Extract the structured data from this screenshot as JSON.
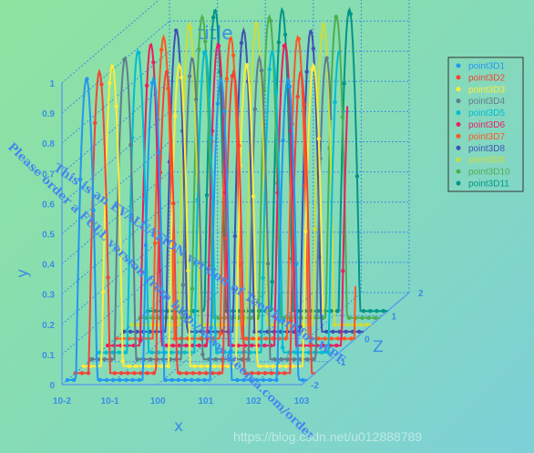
{
  "chart_data": {
    "type": "line",
    "title": "title",
    "xlabel": "x",
    "ylabel": "y",
    "zlabel": "Z",
    "x_scale": "log",
    "x_ticks": [
      "10-2",
      "10-1",
      "100",
      "101",
      "102",
      "103"
    ],
    "y_ticks": [
      "0",
      "0.1",
      "0.2",
      "0.3",
      "0.4",
      "0.5",
      "0.6",
      "0.7",
      "0.8",
      "0.9",
      "1"
    ],
    "z_ticks": [
      "-2",
      "-1",
      "0",
      "1",
      "2"
    ],
    "ylim": [
      0,
      1
    ],
    "zlim": [
      -2,
      2
    ],
    "legend_position": "top-right",
    "series": [
      {
        "name": "point3D1",
        "color": "#2196f3",
        "z": -1.8,
        "peaks": [
          -1.6,
          -0.2,
          1.2,
          2.6
        ]
      },
      {
        "name": "point3D2",
        "color": "#f44336",
        "z": -1.5,
        "peaks": [
          -1.5,
          -0.1,
          1.3,
          2.7
        ]
      },
      {
        "name": "point3D3",
        "color": "#ffeb3b",
        "z": -1.2,
        "peaks": [
          -1.4,
          0.0,
          1.4,
          2.8
        ]
      },
      {
        "name": "point3D4",
        "color": "#607d8b",
        "z": -0.9,
        "peaks": [
          -1.3,
          0.1,
          1.5,
          2.9
        ]
      },
      {
        "name": "point3D5",
        "color": "#00bcd4",
        "z": -0.6,
        "peaks": [
          -1.2,
          0.2,
          1.6,
          3.0
        ]
      },
      {
        "name": "point3D6",
        "color": "#e91e63",
        "z": -0.3,
        "peaks": [
          -1.1,
          0.3,
          1.7,
          3.1
        ]
      },
      {
        "name": "point3D7",
        "color": "#ff5722",
        "z": 0.0,
        "peaks": [
          -1.0,
          0.4,
          1.8,
          3.2
        ]
      },
      {
        "name": "point3D8",
        "color": "#3f51b5",
        "z": 0.3,
        "peaks": [
          -0.9,
          0.5,
          1.9,
          3.3
        ]
      },
      {
        "name": "point3D9",
        "color": "#cddc39",
        "z": 0.6,
        "peaks": [
          -0.8,
          0.6,
          2.0,
          3.4
        ]
      },
      {
        "name": "point3D10",
        "color": "#4caf50",
        "z": 0.9,
        "peaks": [
          -0.7,
          0.7,
          2.1,
          3.5
        ]
      },
      {
        "name": "point3D11",
        "color": "#009688",
        "z": 1.2,
        "peaks": [
          -0.6,
          0.8,
          2.2,
          3.6
        ]
      }
    ],
    "grid": true
  },
  "watermark": {
    "line1": "This is an EVALUATION version of TeeChart for WPF.",
    "line2": "Please order a FULL version from http://www.steema.com/order",
    "credit": "https://blog.csdn.net/u012888789"
  }
}
